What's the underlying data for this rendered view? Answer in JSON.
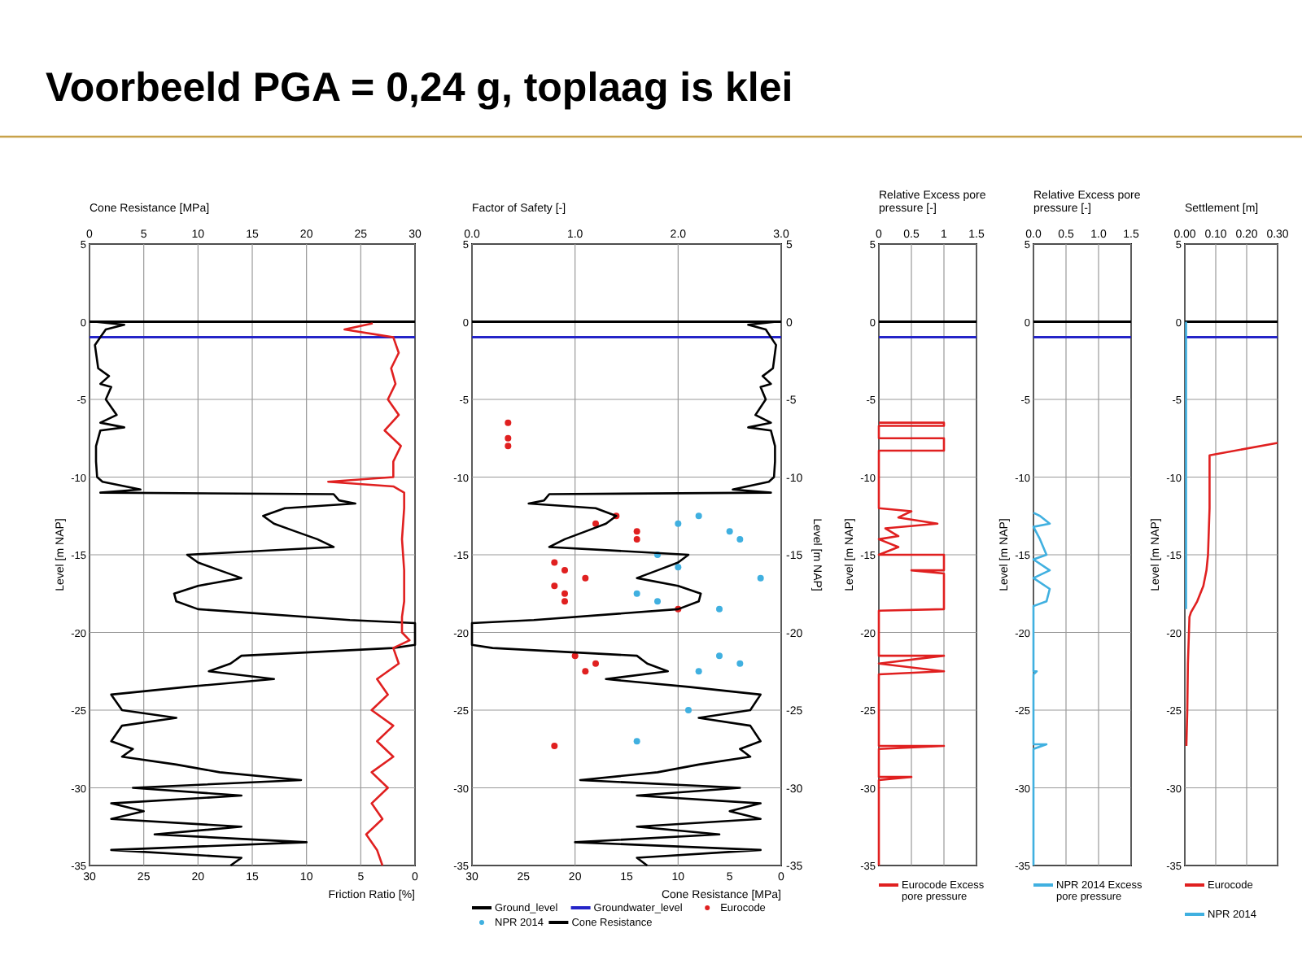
{
  "chart_data": [
    {
      "type": "line",
      "title": "Voorbeeld PGA = 0,24 g, toplaag is klei",
      "x2label": "Cone Resistance [MPa]",
      "xlabel": "Friction Ratio [%]",
      "ylabel": "Level [m NAP]",
      "x2lim": [
        0,
        30
      ],
      "x2ticks": [
        0,
        5,
        10,
        15,
        20,
        25,
        30
      ],
      "xlim": [
        30,
        0
      ],
      "xticks": [
        30,
        25,
        20,
        15,
        10,
        5,
        0
      ],
      "ylim": [
        -35,
        5
      ],
      "yticks": [
        5,
        0,
        -5,
        -10,
        -15,
        -20,
        -25,
        -30,
        -35
      ],
      "grid": true,
      "ref_lines": [
        {
          "axis": "y",
          "value": 0,
          "color": "#000000"
        },
        {
          "axis": "y",
          "value": -1,
          "color": "#2424c8"
        }
      ],
      "series": [
        {
          "color": "#000000",
          "axis": "x2",
          "x": [
            0.5,
            3.2,
            1.5,
            1.0,
            0.5,
            0.6,
            0.8,
            1.8,
            1.0,
            2.0,
            1.5,
            2.5,
            1.0,
            3.2,
            1.0,
            0.6,
            0.6,
            0.7,
            1.2,
            4.7,
            1.0,
            22.5,
            23,
            24.5,
            18,
            16,
            17,
            19,
            21,
            22.5,
            9,
            10,
            12,
            14,
            10,
            7.8,
            8,
            10,
            24,
            30,
            30,
            28,
            14,
            13,
            11,
            17,
            9,
            2,
            3,
            8,
            3,
            2,
            4,
            3,
            8,
            12,
            19.5,
            4,
            14,
            2,
            5,
            2,
            14,
            6,
            20,
            2,
            14,
            13
          ],
          "values": [
            0,
            -0.2,
            -0.5,
            -1,
            -1.5,
            -2,
            -3,
            -3.5,
            -4,
            -4.2,
            -5,
            -6,
            -6.5,
            -6.8,
            -7,
            -8,
            -9,
            -10,
            -10.3,
            -10.8,
            -11,
            -11.1,
            -11.5,
            -11.7,
            -12,
            -12.5,
            -13,
            -13.5,
            -14,
            -14.5,
            -15,
            -15.5,
            -16,
            -16.5,
            -17,
            -17.5,
            -18,
            -18.5,
            -19.2,
            -19.4,
            -20.8,
            -21,
            -21.5,
            -22,
            -22.5,
            -23,
            -23.5,
            -24,
            -25,
            -25.5,
            -26,
            -27,
            -27.5,
            -28,
            -28.5,
            -29,
            -29.5,
            -30,
            -30.5,
            -31,
            -31.5,
            -32,
            -32.5,
            -33,
            -33.5,
            -34,
            -34.5,
            -35
          ]
        },
        {
          "color": "#e02020",
          "x": [
            3.9,
            6.5,
            2.0,
            1.5,
            2.2,
            1.8,
            2.5,
            1.5,
            2.8,
            1.3,
            2.0,
            2.0,
            8,
            2,
            1.0,
            1.0,
            1.2,
            1.0,
            1.0,
            1.2,
            1.2,
            0.5,
            2.0,
            1.5,
            3.5,
            2.5,
            4,
            2,
            3.5,
            2,
            4,
            2.5,
            4,
            3,
            4.5,
            3.5,
            3
          ],
          "values": [
            -0.1,
            -0.5,
            -1,
            -2,
            -3,
            -4,
            -5,
            -6,
            -7,
            -8,
            -9,
            -10,
            -10.3,
            -10.6,
            -11,
            -12,
            -14,
            -16,
            -18,
            -19,
            -20,
            -20.5,
            -21,
            -22,
            -23,
            -24,
            -25,
            -26,
            -27,
            -28,
            -29,
            -30,
            -31,
            -32,
            -33,
            -34,
            -35
          ]
        }
      ]
    },
    {
      "type": "line",
      "x2label": "Factor of Safety [-]",
      "xlabel": "Cone Resistance [MPa]",
      "y2label": "Level [m NAP]",
      "x2lim": [
        0,
        3
      ],
      "x2ticks": [
        {
          "value": 0,
          "label": "0.0"
        },
        {
          "value": 1,
          "label": "1.0"
        },
        {
          "value": 2,
          "label": "2.0"
        },
        {
          "value": 3,
          "label": "3.0"
        }
      ],
      "xlim": [
        30,
        0
      ],
      "xticks": [
        30,
        25,
        20,
        15,
        10,
        5,
        0
      ],
      "ylim": [
        -35,
        5
      ],
      "yticks": [
        5,
        0,
        -5,
        -10,
        -15,
        -20,
        -25,
        -30,
        -35
      ],
      "y2lim": [
        -35,
        5
      ],
      "y2ticks": [
        5,
        0,
        -5,
        -10,
        -15,
        -20,
        -25,
        -30,
        -35
      ],
      "grid": true,
      "legend": "bottom",
      "ref_lines": [
        {
          "axis": "y",
          "value": 0,
          "label": "Ground_level",
          "color": "#000000"
        },
        {
          "axis": "y",
          "value": -1,
          "label": "Groundwater_level",
          "color": "#2424c8"
        }
      ],
      "series": [
        {
          "name": "Eurocode",
          "type": "scatter",
          "axis": "x2",
          "color": "#e02020",
          "x": [
            0.35,
            0.35,
            0.35,
            1.4,
            1.2,
            1.6,
            1.6,
            0.8,
            0.9,
            1.1,
            0.8,
            0.9,
            0.9,
            2.0,
            1.0,
            1.2,
            1.1,
            0.8
          ],
          "values": [
            -6.5,
            -7.5,
            -8,
            -12.5,
            -13,
            -13.5,
            -14,
            -15.5,
            -16,
            -16.5,
            -17,
            -17.5,
            -18,
            -18.5,
            -21.5,
            -22,
            -22.5,
            -27.3
          ]
        },
        {
          "name": "NPR 2014",
          "type": "scatter",
          "axis": "x2",
          "color": "#40b0e0",
          "x": [
            2.2,
            2.0,
            2.5,
            2.6,
            1.8,
            2.0,
            2.8,
            1.6,
            1.8,
            2.4,
            2.4,
            2.6,
            2.2,
            2.1,
            1.6
          ],
          "values": [
            -12.5,
            -13,
            -13.5,
            -14,
            -15,
            -15.8,
            -16.5,
            -17.5,
            -18,
            -18.5,
            -21.5,
            -22,
            -22.5,
            -25,
            -27
          ]
        },
        {
          "name": "Cone Resistance",
          "color": "#000000",
          "x": [
            0.5,
            3.2,
            1.5,
            1.0,
            0.5,
            0.6,
            0.8,
            1.8,
            1.0,
            2.0,
            1.5,
            2.5,
            1.0,
            3.2,
            1.0,
            0.6,
            0.6,
            0.7,
            1.2,
            4.7,
            1.0,
            22.5,
            23,
            24.5,
            18,
            16,
            17,
            19,
            21,
            22.5,
            9,
            10,
            12,
            14,
            10,
            7.8,
            8,
            10,
            24,
            30,
            30,
            28,
            14,
            13,
            11,
            17,
            9,
            2,
            3,
            8,
            3,
            2,
            4,
            3,
            8,
            12,
            19.5,
            4,
            14,
            2,
            5,
            2,
            14,
            6,
            20,
            2,
            14,
            13
          ],
          "values": [
            0,
            -0.2,
            -0.5,
            -1,
            -1.5,
            -2,
            -3,
            -3.5,
            -4,
            -4.2,
            -5,
            -6,
            -6.5,
            -6.8,
            -7,
            -8,
            -9,
            -10,
            -10.3,
            -10.8,
            -11,
            -11.1,
            -11.5,
            -11.7,
            -12,
            -12.5,
            -13,
            -13.5,
            -14,
            -14.5,
            -15,
            -15.5,
            -16,
            -16.5,
            -17,
            -17.5,
            -18,
            -18.5,
            -19.2,
            -19.4,
            -20.8,
            -21,
            -21.5,
            -22,
            -22.5,
            -23,
            -23.5,
            -24,
            -25,
            -25.5,
            -26,
            -27,
            -27.5,
            -28,
            -28.5,
            -29,
            -29.5,
            -30,
            -30.5,
            -31,
            -31.5,
            -32,
            -32.5,
            -33,
            -33.5,
            -34,
            -34.5,
            -35
          ]
        }
      ]
    },
    {
      "type": "line",
      "x2label": "Relative Excess pore pressure [-]",
      "ylabel": "Level [m NAP]",
      "xlim": [
        0,
        1.5
      ],
      "xticks": [
        0,
        0.5,
        1,
        1.5
      ],
      "ylim": [
        -35,
        5
      ],
      "yticks": [
        5,
        0,
        -5,
        -10,
        -15,
        -20,
        -25,
        -30,
        -35
      ],
      "grid": true,
      "legend": "bottom",
      "ref_lines": [
        {
          "axis": "y",
          "value": 0,
          "color": "#000000"
        },
        {
          "axis": "y",
          "value": -1,
          "color": "#2424c8"
        }
      ],
      "series": [
        {
          "name": "Eurocode Excess pore pressure",
          "color": "#e02020",
          "x": [
            0,
            1,
            1,
            0,
            0,
            1,
            1,
            0,
            0,
            0.5,
            0.3,
            0.9,
            0.1,
            0.3,
            0,
            0.3,
            0,
            1,
            1,
            0.5,
            1,
            1,
            0,
            0,
            1,
            0,
            1,
            0,
            0,
            1,
            0,
            0,
            0.5,
            0,
            0
          ],
          "values": [
            -6.5,
            -6.5,
            -6.7,
            -6.7,
            -7.5,
            -7.5,
            -8.3,
            -8.3,
            -12,
            -12.2,
            -12.6,
            -13,
            -13.3,
            -13.8,
            -14,
            -14.5,
            -15,
            -15,
            -16,
            -16,
            -16.2,
            -18.5,
            -18.6,
            -21.5,
            -21.5,
            -22,
            -22.5,
            -22.7,
            -27.3,
            -27.3,
            -27.5,
            -29.3,
            -29.3,
            -29.5,
            -35
          ]
        }
      ]
    },
    {
      "type": "line",
      "x2label": "Relative Excess pore pressure [-]",
      "ylabel": "Level [m NAP]",
      "xlim": [
        0,
        1.5
      ],
      "xticks": [
        {
          "value": 0,
          "label": "0.0"
        },
        0.5,
        {
          "value": 1,
          "label": "1.0"
        },
        1.5
      ],
      "ylim": [
        -35,
        5
      ],
      "yticks": [
        5,
        0,
        -5,
        -10,
        -15,
        -20,
        -25,
        -30,
        -35
      ],
      "grid": true,
      "legend": "bottom",
      "ref_lines": [
        {
          "axis": "y",
          "value": 0,
          "color": "#000000"
        },
        {
          "axis": "y",
          "value": -1,
          "color": "#2424c8"
        }
      ],
      "series": [
        {
          "name": "NPR 2014 Excess pore pressure",
          "color": "#40b0e0",
          "x": [
            0,
            0.1,
            0.25,
            0,
            0.1,
            0.2,
            0,
            0.25,
            0,
            0.25,
            0.2,
            0,
            0,
            0.05,
            0,
            0,
            0.2,
            0,
            0
          ],
          "values": [
            -12.3,
            -12.5,
            -13,
            -13.2,
            -14,
            -15,
            -15.3,
            -16,
            -16.5,
            -17.2,
            -18,
            -18.3,
            -22.5,
            -22.5,
            -22.7,
            -27.2,
            -27.2,
            -27.5,
            -35
          ]
        }
      ]
    },
    {
      "type": "line",
      "x2label": "Settlement [m]",
      "ylabel": "Level [m NAP]",
      "xlim": [
        0,
        0.3
      ],
      "xticks": [
        {
          "value": 0,
          "label": "0.00"
        },
        {
          "value": 0.1,
          "label": "0.10"
        },
        {
          "value": 0.2,
          "label": "0.20"
        },
        {
          "value": 0.3,
          "label": "0.30"
        }
      ],
      "ylim": [
        -35,
        5
      ],
      "yticks": [
        5,
        0,
        -5,
        -10,
        -15,
        -20,
        -25,
        -30,
        -35
      ],
      "grid": true,
      "legend": "bottom",
      "ref_lines": [
        {
          "axis": "y",
          "value": 0,
          "color": "#000000"
        },
        {
          "axis": "y",
          "value": -1,
          "color": "#2424c8"
        }
      ],
      "series": [
        {
          "name": "Eurocode",
          "color": "#e02020",
          "x": [
            0.005,
            0.008,
            0.01,
            0.015,
            0.02,
            0.04,
            0.06,
            0.07,
            0.075,
            0.08,
            0.08,
            0.3
          ],
          "values": [
            -27.3,
            -25,
            -22,
            -19,
            -18.7,
            -18,
            -17,
            -16,
            -15,
            -12,
            -8.6,
            -7.8
          ]
        },
        {
          "name": "NPR 2014",
          "color": "#40b0e0",
          "x": [
            0.004,
            0.004
          ],
          "values": [
            0,
            -18.5
          ]
        }
      ]
    }
  ]
}
